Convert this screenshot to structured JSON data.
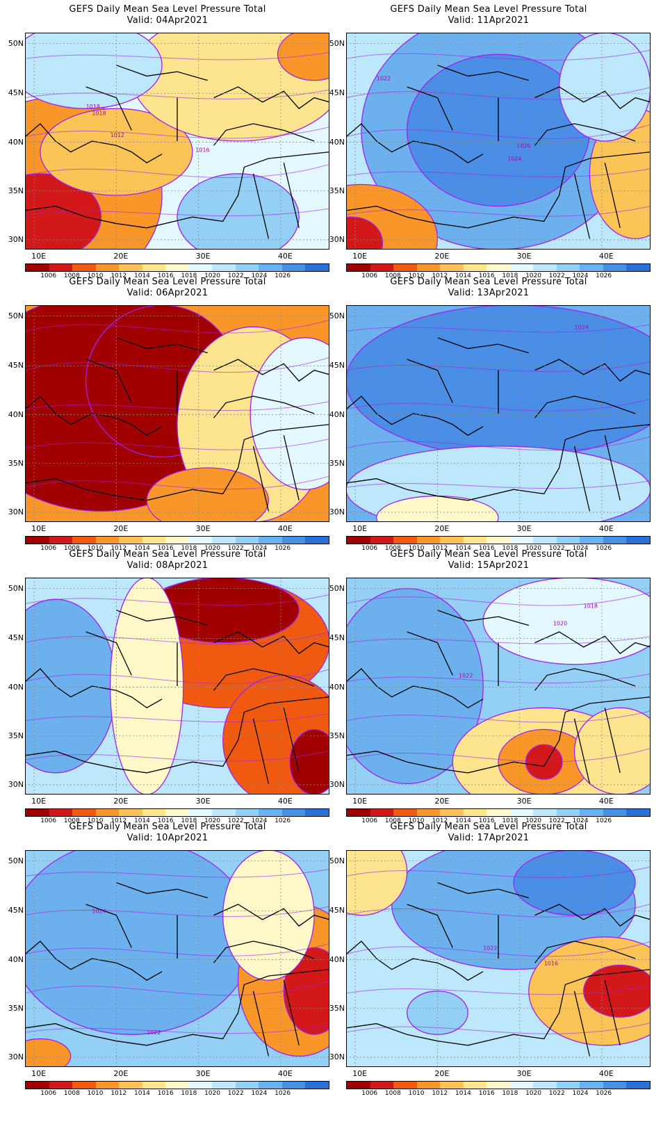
{
  "figure": {
    "title": "GEFS Daily Mean Sea Level Pressure Total",
    "lat_ticks": [
      "50N",
      "45N",
      "40N",
      "35N",
      "30N"
    ],
    "lon_ticks": [
      "10E",
      "20E",
      "30E",
      "40E"
    ],
    "colorbar": {
      "levels": [
        "1006",
        "1008",
        "1010",
        "1012",
        "1014",
        "1016",
        "1018",
        "1020",
        "1022",
        "1024",
        "1026"
      ],
      "colors": [
        "#a00000",
        "#d21818",
        "#f05a10",
        "#f8962a",
        "#fbc456",
        "#fde48e",
        "#fff8c8",
        "#e4f8ff",
        "#bde8fb",
        "#94d0f5",
        "#6cb0ee",
        "#4a8ee6",
        "#2e6ed8"
      ]
    },
    "contour_color": "#a020f0"
  },
  "panels": [
    {
      "valid": "Valid: 04Apr2021",
      "labels": [
        "1018",
        "1018",
        "1012",
        "1016"
      ]
    },
    {
      "valid": "Valid: 11Apr2021",
      "labels": [
        "1022",
        "1026",
        "1024"
      ]
    },
    {
      "valid": "Valid: 06Apr2021",
      "labels": []
    },
    {
      "valid": "Valid: 13Apr2021",
      "labels": [
        "1024"
      ]
    },
    {
      "valid": "Valid: 08Apr2021",
      "labels": []
    },
    {
      "valid": "Valid: 15Apr2021",
      "labels": [
        "1018",
        "1020",
        "1022"
      ]
    },
    {
      "valid": "Valid: 10Apr2021",
      "labels": [
        "1024",
        "1022"
      ]
    },
    {
      "valid": "Valid: 17Apr2021",
      "labels": [
        "1022",
        "1016"
      ]
    }
  ]
}
